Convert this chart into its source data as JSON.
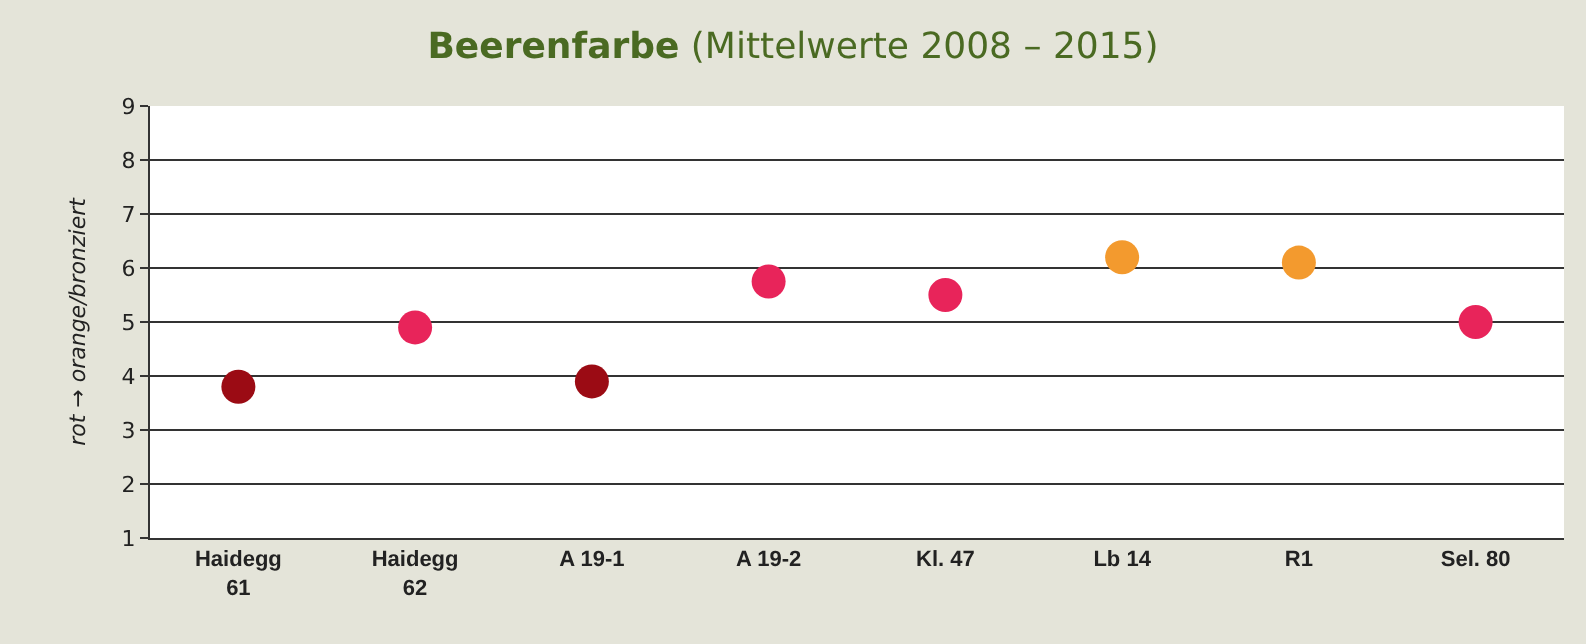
{
  "chart_data": {
    "type": "scatter",
    "title": "Beerenfarbe",
    "subtitle": "(Mittelwerte 2008 – 2015)",
    "ylabel": "rot → orange/bronziert",
    "categories": [
      "Haidegg\n61",
      "Haidegg\n62",
      "A 19-1",
      "A 19-2",
      "Kl. 47",
      "Lb 14",
      "R1",
      "Sel. 80"
    ],
    "values": [
      3.8,
      4.9,
      3.9,
      5.75,
      5.5,
      6.2,
      6.1,
      5.0
    ],
    "colors": [
      "#9b0b14",
      "#e8245a",
      "#9b0b14",
      "#e8245a",
      "#e8245a",
      "#f39a2e",
      "#f39a2e",
      "#e8245a"
    ],
    "ylim": [
      1,
      9
    ],
    "yticks": [
      1,
      2,
      3,
      4,
      5,
      6,
      7,
      8,
      9
    ],
    "grid": "y",
    "marker": "circle"
  }
}
